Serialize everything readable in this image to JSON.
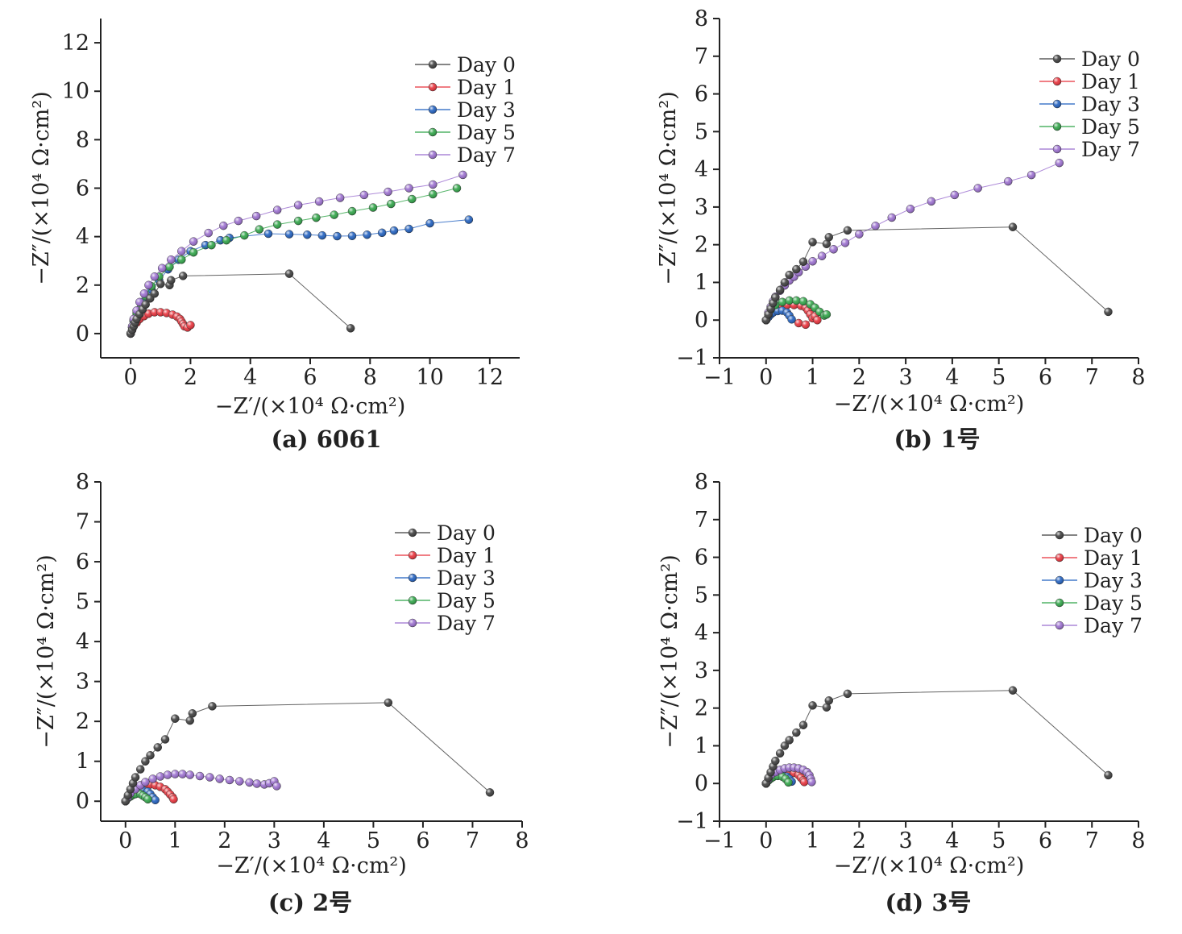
{
  "colors": {
    "Day 0": "#3c3c3c",
    "Day 1": "#e8313a",
    "Day 3": "#1f5fbf",
    "Day 5": "#2fa447",
    "Day 7": "#9b6fcf"
  },
  "chart_data": [
    {
      "type": "scatter",
      "caption": "(a) 6061",
      "xlabel": "−Z′/(×10⁴ Ω·cm²)",
      "ylabel": "−Z″/(×10⁴ Ω·cm²)",
      "xlim": [
        -1,
        13
      ],
      "ylim": [
        -1,
        13
      ],
      "xticks": [
        0,
        2,
        4,
        6,
        8,
        10,
        12
      ],
      "yticks": [
        0,
        2,
        4,
        6,
        8,
        10,
        12
      ],
      "legend": [
        "Day 0",
        "Day 1",
        "Day 3",
        "Day 5",
        "Day 7"
      ],
      "series": [
        {
          "name": "Day 0",
          "x": [
            0,
            0.05,
            0.1,
            0.15,
            0.2,
            0.3,
            0.4,
            0.5,
            0.65,
            0.8,
            1.0,
            1.3,
            1.35,
            1.75,
            5.3,
            7.35
          ],
          "y": [
            0,
            0.15,
            0.3,
            0.45,
            0.6,
            0.8,
            1.0,
            1.2,
            1.45,
            1.65,
            2.05,
            2.0,
            2.2,
            2.38,
            2.47,
            0.22
          ]
        },
        {
          "name": "Day 1",
          "x": [
            0,
            0.05,
            0.1,
            0.2,
            0.3,
            0.45,
            0.6,
            0.8,
            1.0,
            1.2,
            1.4,
            1.55,
            1.65,
            1.7,
            1.75,
            1.8,
            1.9,
            2.0
          ],
          "y": [
            0,
            0.15,
            0.3,
            0.45,
            0.6,
            0.72,
            0.82,
            0.88,
            0.88,
            0.85,
            0.78,
            0.7,
            0.6,
            0.5,
            0.4,
            0.3,
            0.25,
            0.35
          ]
        },
        {
          "name": "Day 3",
          "x": [
            0,
            0.05,
            0.1,
            0.2,
            0.35,
            0.5,
            0.7,
            0.95,
            1.25,
            1.6,
            2.0,
            2.5,
            3.0,
            3.3,
            4.6,
            5.3,
            5.9,
            6.4,
            6.9,
            7.4,
            7.9,
            8.4,
            8.8,
            9.3,
            10.0,
            11.3
          ],
          "y": [
            0,
            0.25,
            0.5,
            0.75,
            1.05,
            1.4,
            1.8,
            2.2,
            2.65,
            3.05,
            3.4,
            3.65,
            3.85,
            3.95,
            4.12,
            4.1,
            4.08,
            4.05,
            4.02,
            4.03,
            4.08,
            4.16,
            4.25,
            4.32,
            4.55,
            4.7
          ]
        },
        {
          "name": "Day 5",
          "x": [
            0,
            0.05,
            0.1,
            0.2,
            0.35,
            0.5,
            0.7,
            0.95,
            1.3,
            1.7,
            2.1,
            2.7,
            3.2,
            3.8,
            4.3,
            4.9,
            5.6,
            6.2,
            6.8,
            7.4,
            8.1,
            8.7,
            9.4,
            10.1,
            10.9
          ],
          "y": [
            0,
            0.25,
            0.55,
            0.85,
            1.2,
            1.55,
            1.95,
            2.35,
            2.75,
            3.05,
            3.35,
            3.65,
            3.85,
            4.05,
            4.3,
            4.5,
            4.65,
            4.78,
            4.9,
            5.05,
            5.2,
            5.35,
            5.55,
            5.75,
            6.0
          ]
        },
        {
          "name": "Day 7",
          "x": [
            0,
            0.05,
            0.1,
            0.2,
            0.3,
            0.45,
            0.6,
            0.8,
            1.05,
            1.35,
            1.7,
            2.1,
            2.6,
            3.1,
            3.6,
            4.2,
            4.9,
            5.6,
            6.3,
            7.0,
            7.8,
            8.6,
            9.3,
            10.1,
            11.1
          ],
          "y": [
            0,
            0.3,
            0.6,
            0.95,
            1.3,
            1.65,
            2.0,
            2.35,
            2.7,
            3.05,
            3.4,
            3.8,
            4.15,
            4.45,
            4.65,
            4.85,
            5.1,
            5.3,
            5.45,
            5.6,
            5.72,
            5.85,
            6.0,
            6.15,
            6.55
          ]
        }
      ]
    },
    {
      "type": "scatter",
      "caption": "(b) 1号",
      "xlabel": "−Z′/(×10⁴ Ω·cm²)",
      "ylabel": "−Z″/(×10⁴ Ω·cm²)",
      "xlim": [
        -1,
        8
      ],
      "ylim": [
        -1,
        8
      ],
      "xticks": [
        -1,
        0,
        1,
        2,
        3,
        4,
        5,
        6,
        7,
        8
      ],
      "yticks": [
        -1,
        0,
        1,
        2,
        3,
        4,
        5,
        6,
        7,
        8
      ],
      "legend": [
        "Day 0",
        "Day 1",
        "Day 3",
        "Day 5",
        "Day 7"
      ],
      "series": [
        {
          "name": "Day 0",
          "x": [
            0,
            0.05,
            0.1,
            0.15,
            0.2,
            0.3,
            0.4,
            0.5,
            0.65,
            0.8,
            1.0,
            1.3,
            1.35,
            1.75,
            5.3,
            7.35
          ],
          "y": [
            0,
            0.15,
            0.3,
            0.45,
            0.6,
            0.8,
            1.0,
            1.2,
            1.35,
            1.55,
            2.07,
            2.02,
            2.2,
            2.38,
            2.47,
            0.22
          ]
        },
        {
          "name": "Day 1",
          "x": [
            0,
            0.05,
            0.1,
            0.2,
            0.3,
            0.45,
            0.6,
            0.75,
            0.85,
            0.9,
            0.95,
            1.0,
            1.05,
            1.1,
            0.7,
            0.85
          ],
          "y": [
            0,
            0.1,
            0.2,
            0.3,
            0.37,
            0.4,
            0.4,
            0.38,
            0.33,
            0.25,
            0.15,
            0.05,
            0.1,
            0.0,
            -0.08,
            -0.12
          ]
        },
        {
          "name": "Day 3",
          "x": [
            0,
            0.05,
            0.1,
            0.15,
            0.25,
            0.35,
            0.45,
            0.5,
            0.55
          ],
          "y": [
            0,
            0.08,
            0.15,
            0.2,
            0.24,
            0.25,
            0.2,
            0.12,
            0.02
          ]
        },
        {
          "name": "Day 5",
          "x": [
            0,
            0.05,
            0.1,
            0.2,
            0.35,
            0.5,
            0.65,
            0.8,
            0.95,
            1.05,
            1.15,
            1.25,
            1.3
          ],
          "y": [
            0,
            0.15,
            0.28,
            0.4,
            0.48,
            0.52,
            0.52,
            0.5,
            0.42,
            0.33,
            0.22,
            0.12,
            0.15
          ]
        },
        {
          "name": "Day 7",
          "x": [
            0,
            0.05,
            0.1,
            0.15,
            0.2,
            0.3,
            0.4,
            0.5,
            0.6,
            0.7,
            0.85,
            1.0,
            1.2,
            1.45,
            1.7,
            2.0,
            2.35,
            2.7,
            3.1,
            3.55,
            4.05,
            4.55,
            5.2,
            5.7,
            6.3
          ],
          "y": [
            0,
            0.2,
            0.35,
            0.5,
            0.62,
            0.78,
            0.92,
            1.05,
            1.15,
            1.27,
            1.42,
            1.56,
            1.7,
            1.88,
            2.05,
            2.28,
            2.5,
            2.72,
            2.95,
            3.15,
            3.32,
            3.5,
            3.68,
            3.85,
            4.17
          ]
        }
      ]
    },
    {
      "type": "scatter",
      "caption": "(c) 2号",
      "xlabel": "−Z′/(×10⁴ Ω·cm²)",
      "ylabel": "−Z″/(×10⁴ Ω·cm²)",
      "xlim": [
        -0.5,
        8
      ],
      "ylim": [
        -0.5,
        8
      ],
      "xticks": [
        0,
        1,
        2,
        3,
        4,
        5,
        6,
        7,
        8
      ],
      "yticks": [
        0,
        1,
        2,
        3,
        4,
        5,
        6,
        7,
        8
      ],
      "legend": [
        "Day 0",
        "Day 1",
        "Day 3",
        "Day 5",
        "Day 7"
      ],
      "series": [
        {
          "name": "Day 0",
          "x": [
            0,
            0.05,
            0.1,
            0.15,
            0.2,
            0.3,
            0.4,
            0.5,
            0.65,
            0.8,
            1.0,
            1.3,
            1.35,
            1.75,
            5.3,
            7.35
          ],
          "y": [
            0,
            0.15,
            0.3,
            0.45,
            0.6,
            0.8,
            1.0,
            1.15,
            1.35,
            1.55,
            2.07,
            2.02,
            2.2,
            2.38,
            2.47,
            0.22
          ]
        },
        {
          "name": "Day 1",
          "x": [
            0,
            0.05,
            0.1,
            0.2,
            0.3,
            0.4,
            0.5,
            0.6,
            0.7,
            0.8,
            0.85,
            0.9,
            0.95,
            0.97
          ],
          "y": [
            0,
            0.1,
            0.18,
            0.28,
            0.35,
            0.4,
            0.42,
            0.4,
            0.36,
            0.3,
            0.24,
            0.17,
            0.1,
            0.05
          ]
        },
        {
          "name": "Day 3",
          "x": [
            0,
            0.05,
            0.1,
            0.15,
            0.25,
            0.35,
            0.45,
            0.5,
            0.55,
            0.6
          ],
          "y": [
            0,
            0.1,
            0.18,
            0.24,
            0.28,
            0.28,
            0.24,
            0.18,
            0.1,
            0.03
          ]
        },
        {
          "name": "Day 5",
          "x": [
            0,
            0.05,
            0.1,
            0.15,
            0.2,
            0.3,
            0.35,
            0.4,
            0.45
          ],
          "y": [
            0,
            0.08,
            0.12,
            0.16,
            0.18,
            0.18,
            0.14,
            0.1,
            0.05
          ]
        },
        {
          "name": "Day 7",
          "x": [
            0,
            0.05,
            0.1,
            0.2,
            0.3,
            0.4,
            0.55,
            0.7,
            0.85,
            1.0,
            1.15,
            1.3,
            1.5,
            1.7,
            1.9,
            2.1,
            2.3,
            2.5,
            2.65,
            2.8,
            2.9,
            3.0,
            3.05
          ],
          "y": [
            0,
            0.1,
            0.2,
            0.3,
            0.4,
            0.48,
            0.56,
            0.62,
            0.66,
            0.68,
            0.68,
            0.66,
            0.63,
            0.6,
            0.56,
            0.53,
            0.5,
            0.47,
            0.44,
            0.42,
            0.45,
            0.5,
            0.38
          ]
        }
      ]
    },
    {
      "type": "scatter",
      "caption": "(d) 3号",
      "xlabel": "−Z′/(×10⁴ Ω·cm²)",
      "ylabel": "−Z″/(×10⁴ Ω·cm²)",
      "xlim": [
        -1,
        8
      ],
      "ylim": [
        -1,
        8
      ],
      "xticks": [
        -1,
        0,
        1,
        2,
        3,
        4,
        5,
        6,
        7,
        8
      ],
      "yticks": [
        -1,
        0,
        1,
        2,
        3,
        4,
        5,
        6,
        7,
        8
      ],
      "legend": [
        "Day 0",
        "Day 1",
        "Day 3",
        "Day 5",
        "Day 7"
      ],
      "series": [
        {
          "name": "Day 0",
          "x": [
            0,
            0.05,
            0.1,
            0.15,
            0.2,
            0.3,
            0.4,
            0.5,
            0.65,
            0.8,
            1.0,
            1.3,
            1.35,
            1.75,
            5.3,
            7.35
          ],
          "y": [
            0,
            0.15,
            0.3,
            0.45,
            0.6,
            0.8,
            1.0,
            1.15,
            1.35,
            1.55,
            2.07,
            2.02,
            2.2,
            2.38,
            2.47,
            0.22
          ]
        },
        {
          "name": "Day 1",
          "x": [
            0,
            0.05,
            0.1,
            0.2,
            0.3,
            0.4,
            0.5,
            0.6,
            0.7,
            0.75,
            0.8,
            0.82
          ],
          "y": [
            0,
            0.1,
            0.2,
            0.3,
            0.34,
            0.34,
            0.32,
            0.28,
            0.22,
            0.15,
            0.08,
            0.04
          ]
        },
        {
          "name": "Day 3",
          "x": [
            0,
            0.05,
            0.1,
            0.15,
            0.25,
            0.35,
            0.45,
            0.5,
            0.55
          ],
          "y": [
            0,
            0.08,
            0.14,
            0.18,
            0.22,
            0.22,
            0.18,
            0.12,
            0.05
          ]
        },
        {
          "name": "Day 5",
          "x": [
            0,
            0.05,
            0.1,
            0.15,
            0.25,
            0.35,
            0.42,
            0.48
          ],
          "y": [
            0,
            0.08,
            0.13,
            0.17,
            0.2,
            0.18,
            0.12,
            0.03
          ]
        },
        {
          "name": "Day 7",
          "x": [
            0,
            0.05,
            0.1,
            0.2,
            0.3,
            0.4,
            0.5,
            0.6,
            0.7,
            0.8,
            0.88,
            0.93,
            0.96,
            0.98
          ],
          "y": [
            0,
            0.12,
            0.22,
            0.3,
            0.36,
            0.4,
            0.42,
            0.42,
            0.4,
            0.36,
            0.3,
            0.22,
            0.12,
            0.04
          ]
        }
      ]
    }
  ]
}
